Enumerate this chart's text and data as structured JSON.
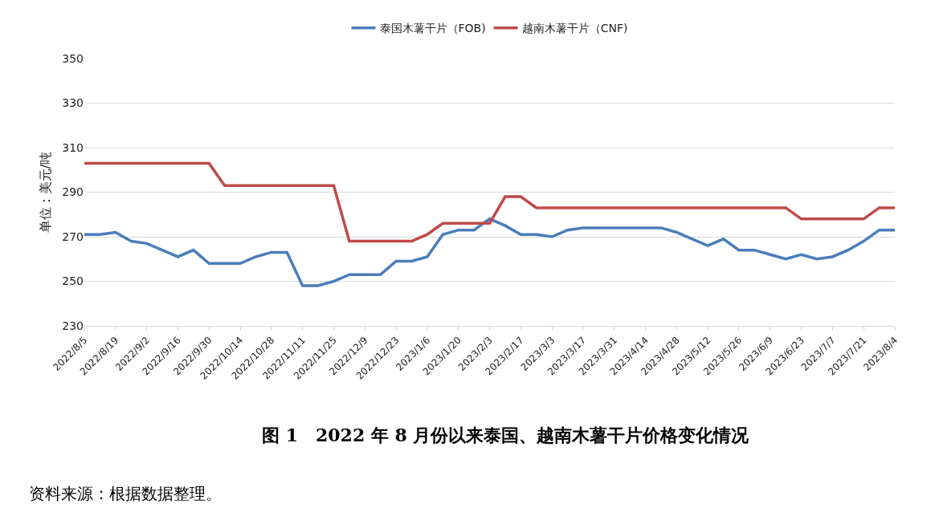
{
  "chart_data": {
    "type": "line",
    "title": "图 1　2022 年 8 月份以来泰国、越南木薯干片价格变化情况",
    "ylabel": "单位：美元/吨",
    "annotations": [
      "资料来源：根据数据整理。"
    ],
    "categories": [
      "2022/8/5",
      null,
      "2022/8/19",
      null,
      "2022/9/2",
      null,
      "2022/9/16",
      null,
      "2022/9/30",
      null,
      "2022/10/14",
      null,
      "2022/10/28",
      null,
      "2022/11/11",
      null,
      "2022/11/25",
      null,
      "2022/12/9",
      null,
      "2022/12/23",
      null,
      "2023/1/6",
      null,
      "2023/1/20",
      null,
      "2023/2/3",
      null,
      "2023/2/17",
      null,
      "2023/3/3",
      null,
      "2023/3/17",
      null,
      "2023/3/31",
      null,
      "2023/4/14",
      null,
      "2023/4/28",
      null,
      "2023/5/12",
      null,
      "2023/5/26",
      null,
      "2023/6/9",
      null,
      "2023/6/23",
      null,
      "2023/7/7",
      null,
      "2023/7/21",
      null,
      "2023/8/4"
    ],
    "series": [
      {
        "name": "泰国木薯干片（FOB)",
        "color": "#4a7ebb",
        "values": [
          271,
          271,
          272,
          268,
          267,
          264,
          261,
          264,
          258,
          258,
          258,
          261,
          263,
          263,
          248,
          248,
          250,
          253,
          253,
          253,
          259,
          259,
          261,
          271,
          273,
          273,
          278,
          275,
          271,
          271,
          270,
          273,
          274,
          274,
          274,
          274,
          274,
          274,
          272,
          269,
          266,
          269,
          264,
          264,
          262,
          260,
          262,
          260,
          261,
          264,
          268,
          273,
          273
        ]
      },
      {
        "name": "越南木薯干片（CNF)",
        "color": "#be4b48",
        "values": [
          303,
          303,
          303,
          303,
          303,
          303,
          303,
          303,
          303,
          293,
          293,
          293,
          293,
          293,
          293,
          293,
          293,
          268,
          268,
          268,
          268,
          268,
          271,
          276,
          276,
          276,
          276,
          288,
          288,
          283,
          283,
          283,
          283,
          283,
          283,
          283,
          283,
          283,
          283,
          283,
          283,
          283,
          283,
          283,
          283,
          283,
          278,
          278,
          278,
          278,
          278,
          283,
          283
        ]
      }
    ],
    "ylim": [
      230,
      350
    ],
    "yticks": [
      230,
      250,
      270,
      290,
      310,
      330,
      350
    ],
    "grid": "y",
    "legend": "top",
    "marker": "none",
    "line_style": "solid"
  }
}
